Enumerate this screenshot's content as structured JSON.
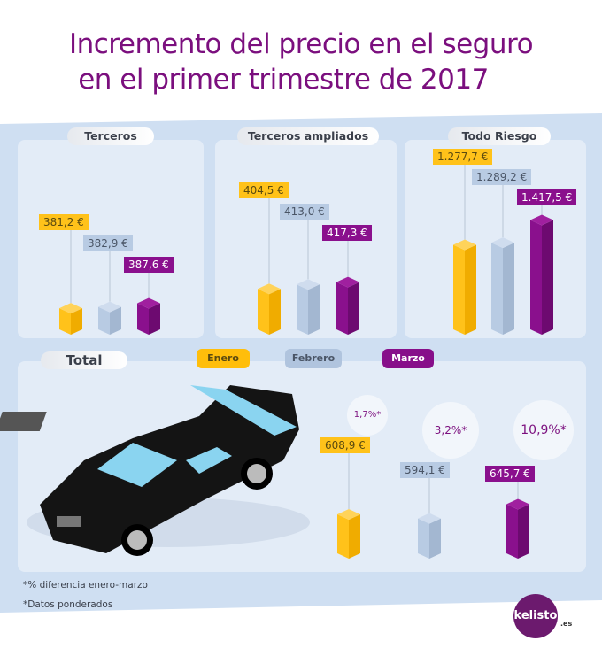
{
  "title": {
    "line1": "Incremento del precio en el seguro",
    "line2": "en el primer trimestre de 2017"
  },
  "colors": {
    "enero": "#ffbe0b",
    "febrero": "#b0c4de",
    "marzo": "#870f8a",
    "title": "#7b0f7e",
    "band": "#cfdff2",
    "panel": "#e3ecf7"
  },
  "legend": [
    {
      "label": "Enero",
      "color": "#ffbe0b",
      "text": "#5a4a10"
    },
    {
      "label": "Febrero",
      "color": "#b0c4de",
      "text": "#4a5566"
    },
    {
      "label": "Marzo",
      "color": "#870f8a",
      "text": "#ffffff"
    }
  ],
  "chart_data": [
    {
      "type": "bar",
      "title": "Terceros",
      "categories": [
        "Enero",
        "Febrero",
        "Marzo"
      ],
      "values": [
        381.2,
        382.9,
        387.6
      ],
      "labels": [
        "381,2 €",
        "382,9 €",
        "387,6 €"
      ],
      "unit": "€"
    },
    {
      "type": "bar",
      "title": "Terceros ampliados",
      "categories": [
        "Enero",
        "Febrero",
        "Marzo"
      ],
      "values": [
        404.5,
        413.0,
        417.3
      ],
      "labels": [
        "404,5 €",
        "413,0 €",
        "417,3 €"
      ],
      "unit": "€"
    },
    {
      "type": "bar",
      "title": "Todo Riesgo",
      "categories": [
        "Enero",
        "Febrero",
        "Marzo"
      ],
      "values": [
        1277.7,
        1289.2,
        1417.5
      ],
      "labels": [
        "1.277,7 €",
        "1.289,2 €",
        "1.417,5 €"
      ],
      "unit": "€"
    },
    {
      "type": "bar",
      "title": "Total",
      "categories": [
        "Enero",
        "Febrero",
        "Marzo"
      ],
      "values": [
        608.9,
        594.1,
        645.7
      ],
      "labels": [
        "608,9 €",
        "594,1 €",
        "645,7 €"
      ],
      "unit": "€",
      "annotations": [
        "1,7%*",
        "3,2%*",
        "10,9%*"
      ]
    }
  ],
  "notes": [
    "*% diferencia enero-marzo",
    "*Datos ponderados"
  ],
  "logo": {
    "text": "kelisto",
    "suffix": ".es"
  }
}
